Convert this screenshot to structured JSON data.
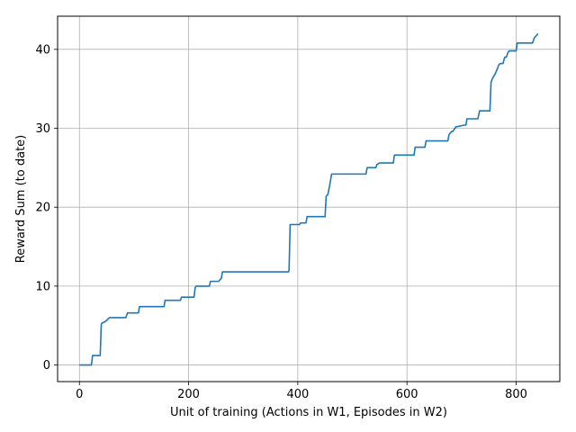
{
  "chart_data": {
    "type": "line",
    "title": "",
    "xlabel": "Unit of training (Actions in W1, Episodes in W2)",
    "ylabel": "Reward Sum (to date)",
    "xlim": [
      -40,
      880
    ],
    "ylim": [
      -2.1,
      44.2
    ],
    "xticks": [
      0,
      200,
      400,
      600,
      800
    ],
    "yticks": [
      0,
      10,
      20,
      30,
      40
    ],
    "grid": true,
    "series": [
      {
        "color": "#1f77b4",
        "x": [
          0,
          22,
          24,
          38,
          40,
          41,
          47,
          52,
          55,
          58,
          85,
          88,
          108,
          110,
          155,
          157,
          185,
          187,
          210,
          212,
          214,
          218,
          238,
          240,
          255,
          260,
          262,
          380,
          383,
          384,
          386,
          388,
          403,
          405,
          415,
          417,
          450,
          452,
          455,
          458,
          462,
          465,
          525,
          527,
          543,
          545,
          550,
          552,
          575,
          577,
          613,
          615,
          633,
          635,
          675,
          677,
          682,
          684,
          690,
          692,
          705,
          708,
          710,
          713,
          730,
          733,
          752,
          754,
          756,
          759,
          761,
          766,
          768,
          771,
          776,
          779,
          782,
          785,
          787,
          790,
          800,
          802,
          830,
          833,
          835,
          838,
          840
        ],
        "y": [
          0,
          0,
          1.2,
          1.2,
          5.1,
          5.3,
          5.5,
          5.8,
          6.0,
          6.0,
          6.0,
          6.6,
          6.6,
          7.4,
          7.4,
          8.2,
          8.2,
          8.6,
          8.6,
          9.8,
          10.0,
          10.0,
          10.0,
          10.6,
          10.6,
          11.0,
          11.8,
          11.8,
          11.8,
          12.0,
          17.8,
          17.8,
          17.8,
          18.0,
          18.0,
          18.8,
          18.8,
          21.4,
          21.6,
          22.6,
          24.2,
          24.2,
          24.2,
          25.0,
          25.0,
          25.4,
          25.6,
          25.6,
          25.6,
          26.6,
          26.6,
          27.6,
          27.6,
          28.4,
          28.4,
          29.2,
          29.6,
          29.6,
          30.2,
          30.2,
          30.4,
          30.4,
          31.2,
          31.2,
          31.2,
          32.2,
          32.2,
          35.8,
          36.2,
          36.6,
          36.8,
          37.6,
          38.0,
          38.2,
          38.2,
          39.0,
          39.0,
          39.6,
          39.8,
          39.8,
          39.8,
          40.8,
          40.8,
          41.4,
          41.6,
          41.8,
          42.0
        ]
      }
    ]
  }
}
